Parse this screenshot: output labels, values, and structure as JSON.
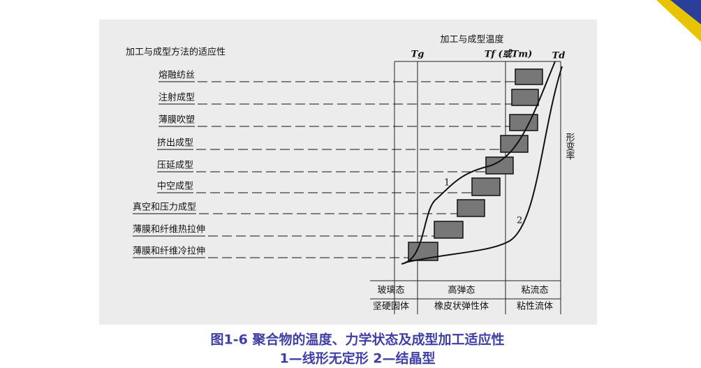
{
  "diagram": {
    "left_title": "加工与成型方法的适应性",
    "top_title": "加工与成型温度",
    "temperatures": [
      "Tg",
      "Tf (或Tm)",
      "Td"
    ],
    "right_axis": "形变率",
    "methods": [
      "熔融纺丝",
      "注射成型",
      "薄膜吹塑",
      "挤出成型",
      "压延成型",
      "中空成型",
      "真空和压力成型",
      "薄膜和纤维热拉伸",
      "薄膜和纤维冷拉伸"
    ],
    "curves": [
      "1",
      "2"
    ],
    "states": [
      {
        "name": "玻璃态",
        "desc": "坚硬固体"
      },
      {
        "name": "高弹态",
        "desc": "橡皮状弹性体"
      },
      {
        "name": "粘流态",
        "desc": "粘性流体"
      }
    ]
  },
  "caption": [
    "图1-6  聚合物的温度、力学状态及成型加工适应性",
    "1—线形无定形  2—结晶型"
  ]
}
